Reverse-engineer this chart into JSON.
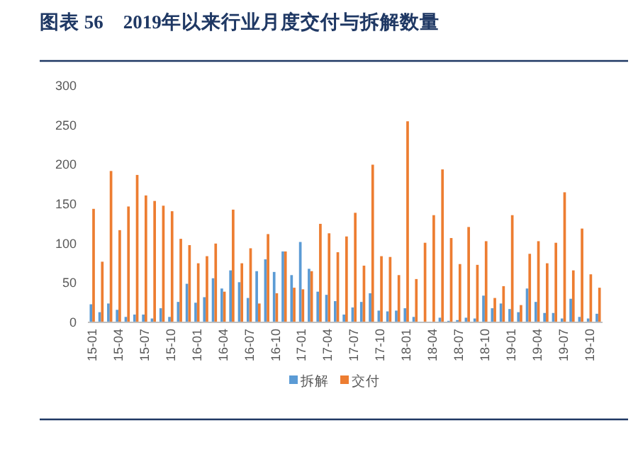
{
  "chart_data": {
    "type": "bar",
    "title": "图表 56　2019年以来行业月度交付与拆解数量",
    "categories": [
      "15-01",
      null,
      null,
      "15-04",
      null,
      null,
      "15-07",
      null,
      null,
      "15-10",
      null,
      null,
      "16-01",
      null,
      null,
      "16-04",
      null,
      null,
      "16-07",
      null,
      null,
      "16-10",
      null,
      null,
      "17-01",
      null,
      null,
      "17-04",
      null,
      null,
      "17-07",
      null,
      null,
      "17-10",
      null,
      null,
      "18-01",
      null,
      null,
      "18-04",
      null,
      null,
      "18-07",
      null,
      null,
      "18-10",
      null,
      null,
      "19-01",
      null,
      null,
      "19-04",
      null,
      null,
      "19-07",
      null,
      null,
      "19-10",
      null
    ],
    "series": [
      {
        "name": "拆解",
        "color": "#5b9bd5",
        "values": [
          22,
          12,
          23,
          15,
          6,
          9,
          9,
          4,
          17,
          6,
          25,
          48,
          24,
          31,
          55,
          42,
          65,
          50,
          30,
          64,
          79,
          63,
          89,
          59,
          101,
          67,
          38,
          34,
          26,
          9,
          18,
          25,
          36,
          14,
          13,
          14,
          17,
          6,
          0,
          0,
          5,
          1,
          2,
          5,
          4,
          33,
          17,
          23,
          16,
          12,
          42,
          25,
          11,
          11,
          4,
          29,
          6,
          4,
          10
        ]
      },
      {
        "name": "交付",
        "color": "#ed7d31",
        "values": [
          143,
          76,
          191,
          116,
          146,
          186,
          160,
          153,
          147,
          140,
          105,
          97,
          74,
          83,
          99,
          38,
          142,
          74,
          93,
          23,
          111,
          36,
          89,
          43,
          41,
          64,
          124,
          112,
          88,
          108,
          138,
          71,
          199,
          83,
          82,
          59,
          254,
          54,
          100,
          135,
          193,
          106,
          73,
          120,
          72,
          102,
          30,
          45,
          135,
          21,
          86,
          102,
          74,
          100,
          164,
          65,
          118,
          60,
          43
        ]
      }
    ],
    "ylim": [
      0,
      300
    ],
    "yticks": [
      0,
      50,
      100,
      150,
      200,
      250,
      300
    ],
    "grid": false,
    "legend": "bottom"
  }
}
